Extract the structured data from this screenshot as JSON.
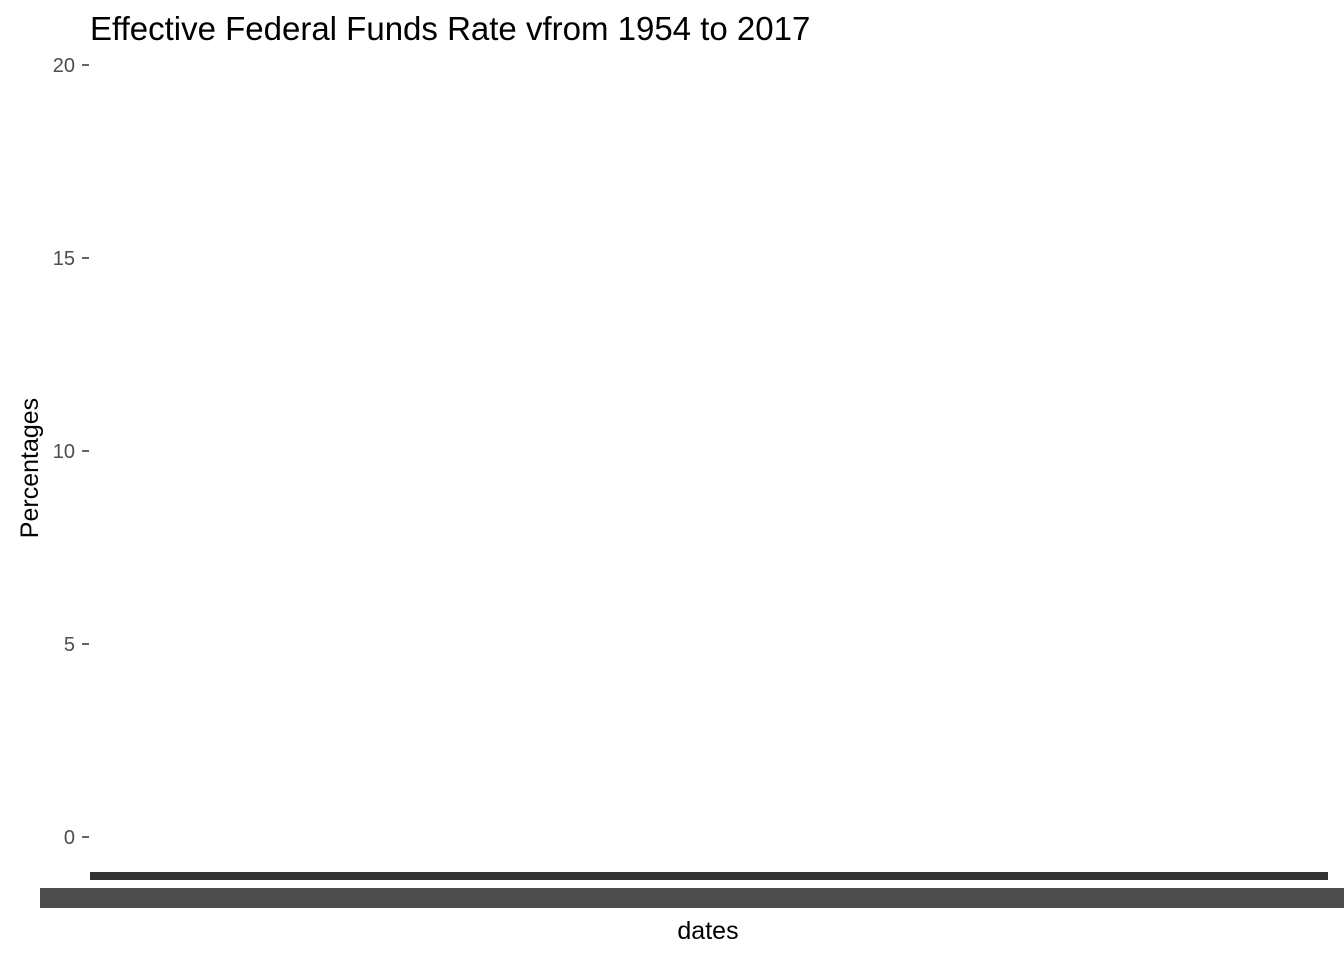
{
  "chart_data": {
    "type": "line",
    "title": "Effective Federal Funds Rate vfrom 1954 to 2017",
    "xlabel": "dates",
    "ylabel": "Percentages",
    "ylim": [
      0,
      20
    ],
    "yticks": [
      "0",
      "5",
      "10",
      "15",
      "20"
    ],
    "xtick_labels_overlapping": true,
    "grid": false,
    "series": [
      {
        "values": []
      }
    ]
  }
}
